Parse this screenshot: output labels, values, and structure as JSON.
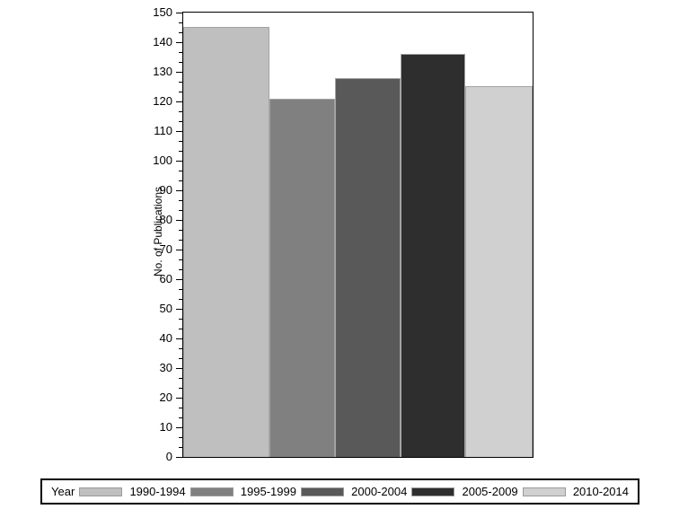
{
  "chart_data": {
    "type": "bar",
    "title": "",
    "xlabel": "",
    "ylabel": "No. of Publications",
    "ylim": [
      0,
      150
    ],
    "ytick_step": 10,
    "grid": false,
    "legend_position": "bottom",
    "legend_title": "Year",
    "categories": [
      "1990-1994",
      "1995-1999",
      "2000-2004",
      "2005-2009",
      "2010-2014"
    ],
    "values": [
      145,
      121,
      128,
      136,
      125
    ],
    "bar_colors": [
      "#bfbfbf",
      "#808080",
      "#595959",
      "#2e2e2e",
      "#d0d0d0"
    ]
  },
  "axes": {
    "y_label": "No. of Publications",
    "y_ticks": [
      "150",
      "140",
      "130",
      "120",
      "110",
      "100",
      "90",
      "80",
      "70",
      "60",
      "50",
      "40",
      "30",
      "20",
      "10",
      "0"
    ]
  },
  "legend": {
    "title": "Year",
    "items": [
      {
        "label": "1990-1994",
        "color": "#bfbfbf"
      },
      {
        "label": "1995-1999",
        "color": "#808080"
      },
      {
        "label": "2000-2004",
        "color": "#595959"
      },
      {
        "label": "2005-2009",
        "color": "#2e2e2e"
      },
      {
        "label": "2010-2014",
        "color": "#d0d0d0"
      }
    ]
  }
}
